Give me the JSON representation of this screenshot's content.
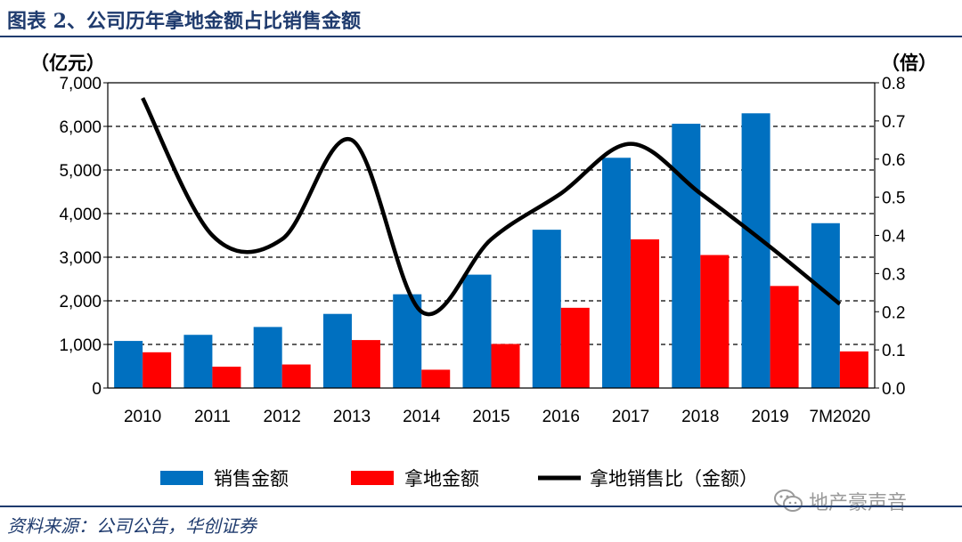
{
  "title": "图表 2、公司历年拿地金额占比销售金额",
  "source": "资料来源：公司公告，华创证券",
  "watermark": {
    "text": "地产豪声音",
    "icon": "wechat-icon"
  },
  "colors": {
    "sales": "#0070c0",
    "land": "#ff0000",
    "ratio": "#000000",
    "title": "#1f3b6e"
  },
  "chart_data": {
    "type": "bar",
    "combo": "bar+line",
    "categories": [
      "2010",
      "2011",
      "2012",
      "2013",
      "2014",
      "2015",
      "2016",
      "2017",
      "2018",
      "2019",
      "7M2020"
    ],
    "series": [
      {
        "name": "销售金额",
        "type": "bar",
        "axis": "left",
        "color": "#0070c0",
        "values": [
          1080,
          1220,
          1400,
          1700,
          2150,
          2600,
          3630,
          5280,
          6060,
          6300,
          3780
        ]
      },
      {
        "name": "拿地金额",
        "type": "bar",
        "axis": "left",
        "color": "#ff0000",
        "values": [
          820,
          490,
          540,
          1100,
          420,
          1010,
          1840,
          3410,
          3050,
          2340,
          840
        ]
      },
      {
        "name": "拿地销售比（金额）",
        "type": "line",
        "axis": "right",
        "color": "#000000",
        "values": [
          0.76,
          0.4,
          0.39,
          0.65,
          0.2,
          0.39,
          0.51,
          0.64,
          0.51,
          0.37,
          0.22
        ]
      }
    ],
    "left_axis": {
      "unit": "（亿元）",
      "ylim": [
        0,
        7000
      ],
      "ticks": [
        "0",
        "1,000",
        "2,000",
        "3,000",
        "4,000",
        "5,000",
        "6,000",
        "7,000"
      ]
    },
    "right_axis": {
      "unit": "（倍）",
      "ylim": [
        0,
        0.8
      ],
      "ticks": [
        "0.0",
        "0.1",
        "0.2",
        "0.3",
        "0.4",
        "0.5",
        "0.6",
        "0.7",
        "0.8"
      ]
    },
    "grid": true,
    "grid_style": "dashed",
    "legend_position": "bottom"
  }
}
